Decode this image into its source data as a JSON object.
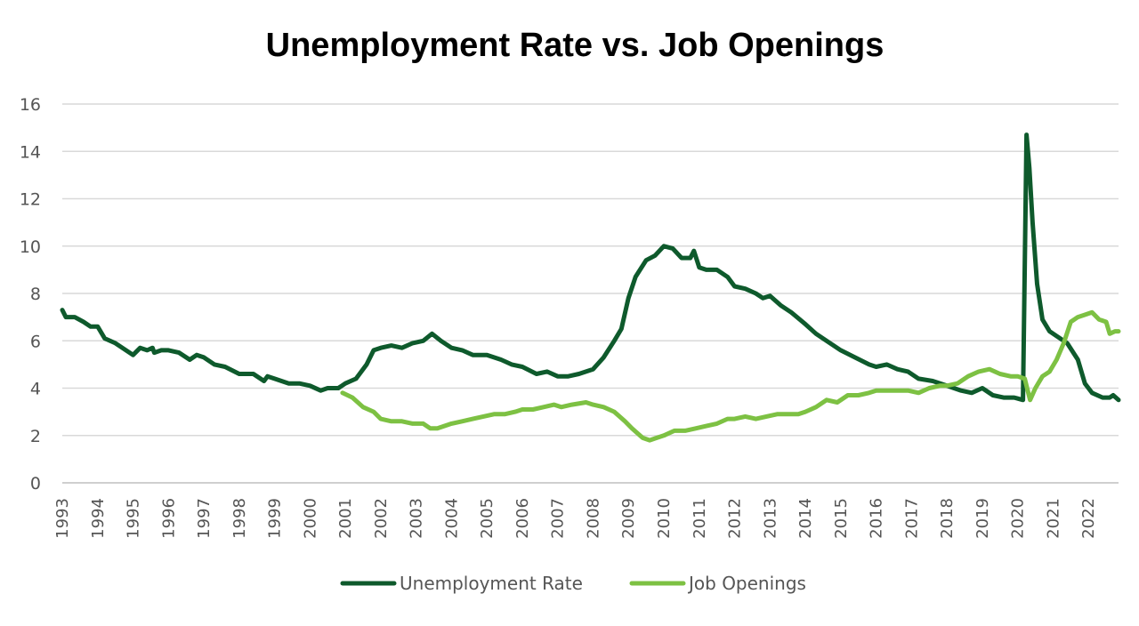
{
  "chart_data": {
    "type": "line",
    "title": "Unemployment Rate vs. Job Openings",
    "xlabel": "",
    "ylabel": "",
    "xlim": [
      1993,
      2022.85
    ],
    "ylim": [
      0,
      16
    ],
    "yticks": [
      0,
      2,
      4,
      6,
      8,
      10,
      12,
      14,
      16
    ],
    "xticks": [
      "1993",
      "1994",
      "1995",
      "1996",
      "1997",
      "1998",
      "1999",
      "2000",
      "2001",
      "2002",
      "2003",
      "2004",
      "2005",
      "2006",
      "2007",
      "2008",
      "2009",
      "2010",
      "2011",
      "2012",
      "2013",
      "2014",
      "2015",
      "2016",
      "2017",
      "2018",
      "2019",
      "2020",
      "2021",
      "2022"
    ],
    "grid": true,
    "legend_position": "bottom",
    "colors": {
      "unemployment": "#0e5a2c",
      "job_openings": "#7dc143",
      "grid": "#d9d9d9"
    },
    "series": [
      {
        "name": "Unemployment Rate",
        "color": "#0e5a2c",
        "x": [
          1993.0,
          1993.1,
          1993.35,
          1993.6,
          1993.8,
          1994.0,
          1994.2,
          1994.5,
          1994.8,
          1995.0,
          1995.2,
          1995.4,
          1995.55,
          1995.6,
          1995.8,
          1996.0,
          1996.3,
          1996.6,
          1996.8,
          1997.0,
          1997.3,
          1997.6,
          1998.0,
          1998.4,
          1998.7,
          1998.8,
          1999.0,
          1999.4,
          1999.7,
          2000.0,
          2000.3,
          2000.5,
          2000.8,
          2001.0,
          2001.3,
          2001.6,
          2001.8,
          2002.0,
          2002.3,
          2002.6,
          2002.9,
          2003.2,
          2003.45,
          2003.7,
          2004.0,
          2004.3,
          2004.6,
          2005.0,
          2005.4,
          2005.7,
          2006.0,
          2006.4,
          2006.7,
          2007.0,
          2007.3,
          2007.6,
          2008.0,
          2008.3,
          2008.6,
          2008.8,
          2009.0,
          2009.2,
          2009.5,
          2009.75,
          2010.0,
          2010.25,
          2010.5,
          2010.75,
          2010.85,
          2011.0,
          2011.2,
          2011.5,
          2011.8,
          2012.0,
          2012.3,
          2012.6,
          2012.8,
          2013.0,
          2013.3,
          2013.6,
          2014.0,
          2014.3,
          2014.6,
          2015.0,
          2015.4,
          2015.8,
          2016.0,
          2016.3,
          2016.6,
          2016.9,
          2017.2,
          2017.6,
          2018.0,
          2018.4,
          2018.7,
          2019.0,
          2019.3,
          2019.6,
          2019.9,
          2020.15,
          2020.25,
          2020.33,
          2020.42,
          2020.55,
          2020.7,
          2020.9,
          2021.1,
          2021.4,
          2021.7,
          2021.9,
          2022.1,
          2022.4,
          2022.6,
          2022.7,
          2022.85
        ],
        "values": [
          7.3,
          7.0,
          7.0,
          6.8,
          6.6,
          6.6,
          6.1,
          5.9,
          5.6,
          5.4,
          5.7,
          5.6,
          5.7,
          5.5,
          5.6,
          5.6,
          5.5,
          5.2,
          5.4,
          5.3,
          5.0,
          4.9,
          4.6,
          4.6,
          4.3,
          4.5,
          4.4,
          4.2,
          4.2,
          4.1,
          3.9,
          4.0,
          4.0,
          4.2,
          4.4,
          5.0,
          5.6,
          5.7,
          5.8,
          5.7,
          5.9,
          6.0,
          6.3,
          6.0,
          5.7,
          5.6,
          5.4,
          5.4,
          5.2,
          5.0,
          4.9,
          4.6,
          4.7,
          4.5,
          4.5,
          4.6,
          4.8,
          5.3,
          6.0,
          6.5,
          7.8,
          8.7,
          9.4,
          9.6,
          10.0,
          9.9,
          9.5,
          9.5,
          9.8,
          9.1,
          9.0,
          9.0,
          8.7,
          8.3,
          8.2,
          8.0,
          7.8,
          7.9,
          7.5,
          7.2,
          6.7,
          6.3,
          6.0,
          5.6,
          5.3,
          5.0,
          4.9,
          5.0,
          4.8,
          4.7,
          4.4,
          4.3,
          4.1,
          3.9,
          3.8,
          4.0,
          3.7,
          3.6,
          3.6,
          3.5,
          14.7,
          13.3,
          11.0,
          8.4,
          6.9,
          6.4,
          6.2,
          5.9,
          5.2,
          4.2,
          3.8,
          3.6,
          3.6,
          3.7,
          3.5
        ]
      },
      {
        "name": "Job Openings",
        "color": "#7dc143",
        "x": [
          2000.92,
          2001.2,
          2001.5,
          2001.8,
          2002.0,
          2002.3,
          2002.6,
          2002.9,
          2003.2,
          2003.4,
          2003.6,
          2004.0,
          2004.3,
          2004.6,
          2004.9,
          2005.2,
          2005.5,
          2005.8,
          2006.0,
          2006.3,
          2006.6,
          2006.9,
          2007.1,
          2007.4,
          2007.8,
          2008.0,
          2008.3,
          2008.6,
          2008.9,
          2009.1,
          2009.4,
          2009.6,
          2009.8,
          2010.0,
          2010.3,
          2010.6,
          2010.9,
          2011.2,
          2011.5,
          2011.8,
          2012.0,
          2012.3,
          2012.6,
          2012.9,
          2013.2,
          2013.5,
          2013.8,
          2014.0,
          2014.3,
          2014.6,
          2014.9,
          2015.2,
          2015.5,
          2015.8,
          2016.0,
          2016.3,
          2016.6,
          2016.9,
          2017.2,
          2017.5,
          2017.8,
          2018.0,
          2018.3,
          2018.6,
          2018.9,
          2019.2,
          2019.5,
          2019.8,
          2020.0,
          2020.2,
          2020.35,
          2020.5,
          2020.7,
          2020.9,
          2021.1,
          2021.3,
          2021.5,
          2021.7,
          2021.9,
          2022.1,
          2022.3,
          2022.5,
          2022.6,
          2022.75,
          2022.85
        ],
        "values": [
          3.8,
          3.6,
          3.2,
          3.0,
          2.7,
          2.6,
          2.6,
          2.5,
          2.5,
          2.3,
          2.3,
          2.5,
          2.6,
          2.7,
          2.8,
          2.9,
          2.9,
          3.0,
          3.1,
          3.1,
          3.2,
          3.3,
          3.2,
          3.3,
          3.4,
          3.3,
          3.2,
          3.0,
          2.6,
          2.3,
          1.9,
          1.8,
          1.9,
          2.0,
          2.2,
          2.2,
          2.3,
          2.4,
          2.5,
          2.7,
          2.7,
          2.8,
          2.7,
          2.8,
          2.9,
          2.9,
          2.9,
          3.0,
          3.2,
          3.5,
          3.4,
          3.7,
          3.7,
          3.8,
          3.9,
          3.9,
          3.9,
          3.9,
          3.8,
          4.0,
          4.1,
          4.1,
          4.2,
          4.5,
          4.7,
          4.8,
          4.6,
          4.5,
          4.5,
          4.4,
          3.5,
          4.0,
          4.5,
          4.7,
          5.2,
          5.9,
          6.8,
          7.0,
          7.1,
          7.2,
          6.9,
          6.8,
          6.3,
          6.4,
          6.4
        ]
      }
    ]
  }
}
